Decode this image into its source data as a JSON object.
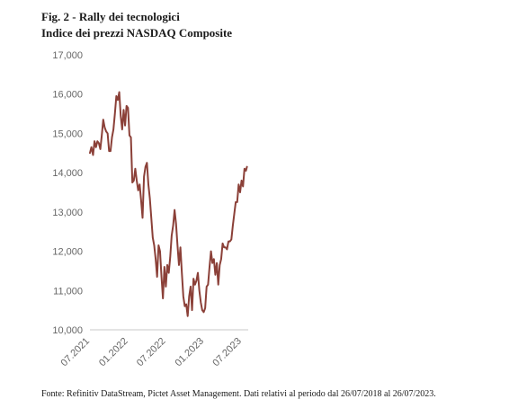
{
  "figure": {
    "title": "Fig. 2 - Rally dei tecnologici",
    "subtitle": "Indice dei prezzi NASDAQ Composite",
    "source": "Fonte: Refinitiv DataStream, Pictet Asset Management. Dati relativi al periodo dal 26/07/2018 al 26/07/2023."
  },
  "chart_data": {
    "type": "line",
    "title": "Indice dei prezzi NASDAQ Composite",
    "xlabel": "",
    "ylabel": "",
    "ylim": [
      10000,
      17000
    ],
    "xlim": [
      "2021-07",
      "2023-08"
    ],
    "grid": false,
    "y_ticks": [
      {
        "value": 10000,
        "label": "10,000"
      },
      {
        "value": 11000,
        "label": "11,000"
      },
      {
        "value": 12000,
        "label": "12,000"
      },
      {
        "value": 13000,
        "label": "13,000"
      },
      {
        "value": 14000,
        "label": "14,000"
      },
      {
        "value": 15000,
        "label": "15,000"
      },
      {
        "value": 16000,
        "label": "16,000"
      },
      {
        "value": 17000,
        "label": "17,000"
      }
    ],
    "x_ticks": [
      {
        "value": "2021-07",
        "label": "07.2021"
      },
      {
        "value": "2022-01",
        "label": "01.2022"
      },
      {
        "value": "2022-07",
        "label": "07.2022"
      },
      {
        "value": "2023-01",
        "label": "01.2023"
      },
      {
        "value": "2023-07",
        "label": "07.2023"
      }
    ],
    "series": [
      {
        "color": "#8b4038",
        "points": [
          [
            "2021-07-01",
            14500
          ],
          [
            "2021-07-08",
            14650
          ],
          [
            "2021-07-16",
            14450
          ],
          [
            "2021-07-23",
            14800
          ],
          [
            "2021-07-30",
            14650
          ],
          [
            "2021-08-06",
            14800
          ],
          [
            "2021-08-13",
            14750
          ],
          [
            "2021-08-20",
            14600
          ],
          [
            "2021-08-27",
            14950
          ],
          [
            "2021-09-03",
            15350
          ],
          [
            "2021-09-10",
            15150
          ],
          [
            "2021-09-17",
            15050
          ],
          [
            "2021-09-24",
            15000
          ],
          [
            "2021-10-01",
            14550
          ],
          [
            "2021-10-08",
            14550
          ],
          [
            "2021-10-15",
            14900
          ],
          [
            "2021-10-22",
            15100
          ],
          [
            "2021-10-29",
            15500
          ],
          [
            "2021-11-05",
            15950
          ],
          [
            "2021-11-12",
            15850
          ],
          [
            "2021-11-19",
            16050
          ],
          [
            "2021-11-26",
            15450
          ],
          [
            "2021-12-03",
            15100
          ],
          [
            "2021-12-10",
            15600
          ],
          [
            "2021-12-17",
            15200
          ],
          [
            "2021-12-24",
            15700
          ],
          [
            "2021-12-31",
            15650
          ],
          [
            "2022-01-07",
            14950
          ],
          [
            "2022-01-14",
            14900
          ],
          [
            "2022-01-21",
            13750
          ],
          [
            "2022-01-28",
            13800
          ],
          [
            "2022-02-04",
            14100
          ],
          [
            "2022-02-11",
            13800
          ],
          [
            "2022-02-18",
            13550
          ],
          [
            "2022-02-25",
            13700
          ],
          [
            "2022-03-04",
            13300
          ],
          [
            "2022-03-11",
            12850
          ],
          [
            "2022-03-18",
            13900
          ],
          [
            "2022-03-25",
            14150
          ],
          [
            "2022-04-01",
            14250
          ],
          [
            "2022-04-08",
            13700
          ],
          [
            "2022-04-15",
            13350
          ],
          [
            "2022-04-22",
            12850
          ],
          [
            "2022-04-29",
            12350
          ],
          [
            "2022-05-06",
            12150
          ],
          [
            "2022-05-13",
            11800
          ],
          [
            "2022-05-20",
            11350
          ],
          [
            "2022-05-27",
            12150
          ],
          [
            "2022-06-03",
            12000
          ],
          [
            "2022-06-10",
            11350
          ],
          [
            "2022-06-17",
            10800
          ],
          [
            "2022-06-24",
            11600
          ],
          [
            "2022-07-01",
            11100
          ],
          [
            "2022-07-08",
            11650
          ],
          [
            "2022-07-15",
            11450
          ],
          [
            "2022-07-22",
            11850
          ],
          [
            "2022-07-29",
            12400
          ],
          [
            "2022-08-05",
            12650
          ],
          [
            "2022-08-12",
            13050
          ],
          [
            "2022-08-19",
            12700
          ],
          [
            "2022-08-26",
            12150
          ],
          [
            "2022-09-02",
            11650
          ],
          [
            "2022-09-09",
            12100
          ],
          [
            "2022-09-16",
            11450
          ],
          [
            "2022-09-23",
            10850
          ],
          [
            "2022-09-30",
            10600
          ],
          [
            "2022-10-07",
            10650
          ],
          [
            "2022-10-14",
            10350
          ],
          [
            "2022-10-21",
            10850
          ],
          [
            "2022-10-28",
            11100
          ],
          [
            "2022-11-04",
            10500
          ],
          [
            "2022-11-11",
            11300
          ],
          [
            "2022-11-18",
            11150
          ],
          [
            "2022-11-25",
            11250
          ],
          [
            "2022-12-02",
            11450
          ],
          [
            "2022-12-09",
            11000
          ],
          [
            "2022-12-16",
            10700
          ],
          [
            "2022-12-23",
            10500
          ],
          [
            "2022-12-30",
            10450
          ],
          [
            "2023-01-06",
            10550
          ],
          [
            "2023-01-13",
            11100
          ],
          [
            "2023-01-20",
            11150
          ],
          [
            "2023-01-27",
            11600
          ],
          [
            "2023-02-03",
            12000
          ],
          [
            "2023-02-10",
            11700
          ],
          [
            "2023-02-17",
            11800
          ],
          [
            "2023-02-24",
            11400
          ],
          [
            "2023-03-03",
            11700
          ],
          [
            "2023-03-10",
            11150
          ],
          [
            "2023-03-17",
            11650
          ],
          [
            "2023-03-24",
            11800
          ],
          [
            "2023-03-31",
            12200
          ],
          [
            "2023-04-07",
            12100
          ],
          [
            "2023-04-14",
            12100
          ],
          [
            "2023-04-21",
            12050
          ],
          [
            "2023-04-28",
            12250
          ],
          [
            "2023-05-05",
            12250
          ],
          [
            "2023-05-12",
            12300
          ],
          [
            "2023-05-19",
            12650
          ],
          [
            "2023-05-26",
            12950
          ],
          [
            "2023-06-02",
            13250
          ],
          [
            "2023-06-09",
            13250
          ],
          [
            "2023-06-16",
            13700
          ],
          [
            "2023-06-23",
            13500
          ],
          [
            "2023-06-30",
            13800
          ],
          [
            "2023-07-07",
            13650
          ],
          [
            "2023-07-14",
            14100
          ],
          [
            "2023-07-21",
            14050
          ],
          [
            "2023-07-26",
            14150
          ]
        ]
      }
    ]
  }
}
